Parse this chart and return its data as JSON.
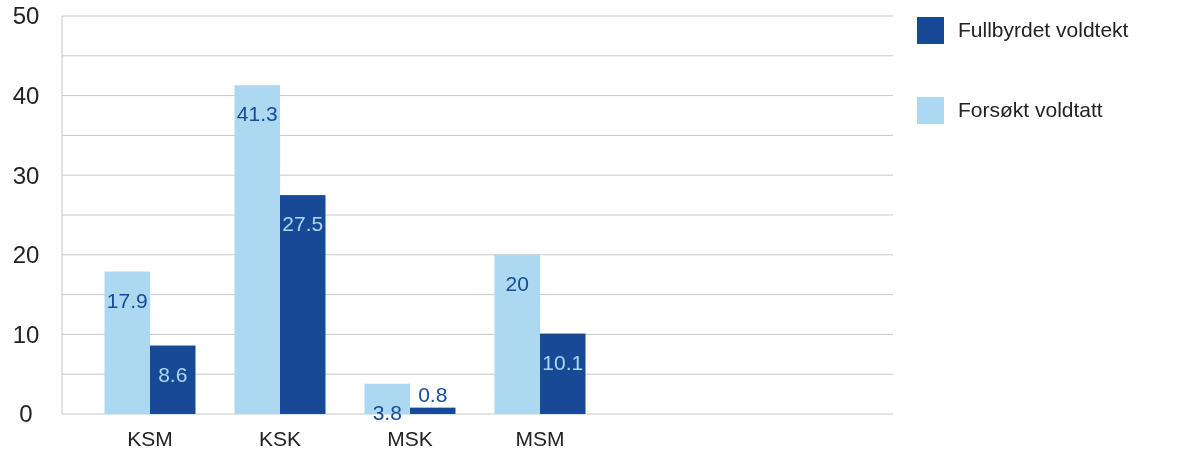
{
  "chart_data": {
    "type": "bar",
    "categories": [
      "KSM",
      "KSK",
      "MSK",
      "MSM",
      null,
      null
    ],
    "series": [
      {
        "name": "Forsøkt voldtatt",
        "color": "#acd8f2",
        "values": [
          17.9,
          41.3,
          3.8,
          20,
          null,
          null
        ]
      },
      {
        "name": "Fullbyrdet voldtekt",
        "color": "#174a96",
        "values": [
          8.6,
          27.5,
          0.8,
          10.1,
          null,
          null
        ]
      }
    ],
    "ylim": [
      0,
      50
    ],
    "yticks": [
      0,
      {
        "value": 5,
        "label": null
      },
      10,
      {
        "value": 15,
        "label": null
      },
      20,
      {
        "value": 25,
        "label": null
      },
      30,
      {
        "value": 35,
        "label": null
      },
      40,
      {
        "value": 45,
        "label": null
      },
      50
    ],
    "grid": "y",
    "legend": "top right",
    "data_labels": true
  }
}
